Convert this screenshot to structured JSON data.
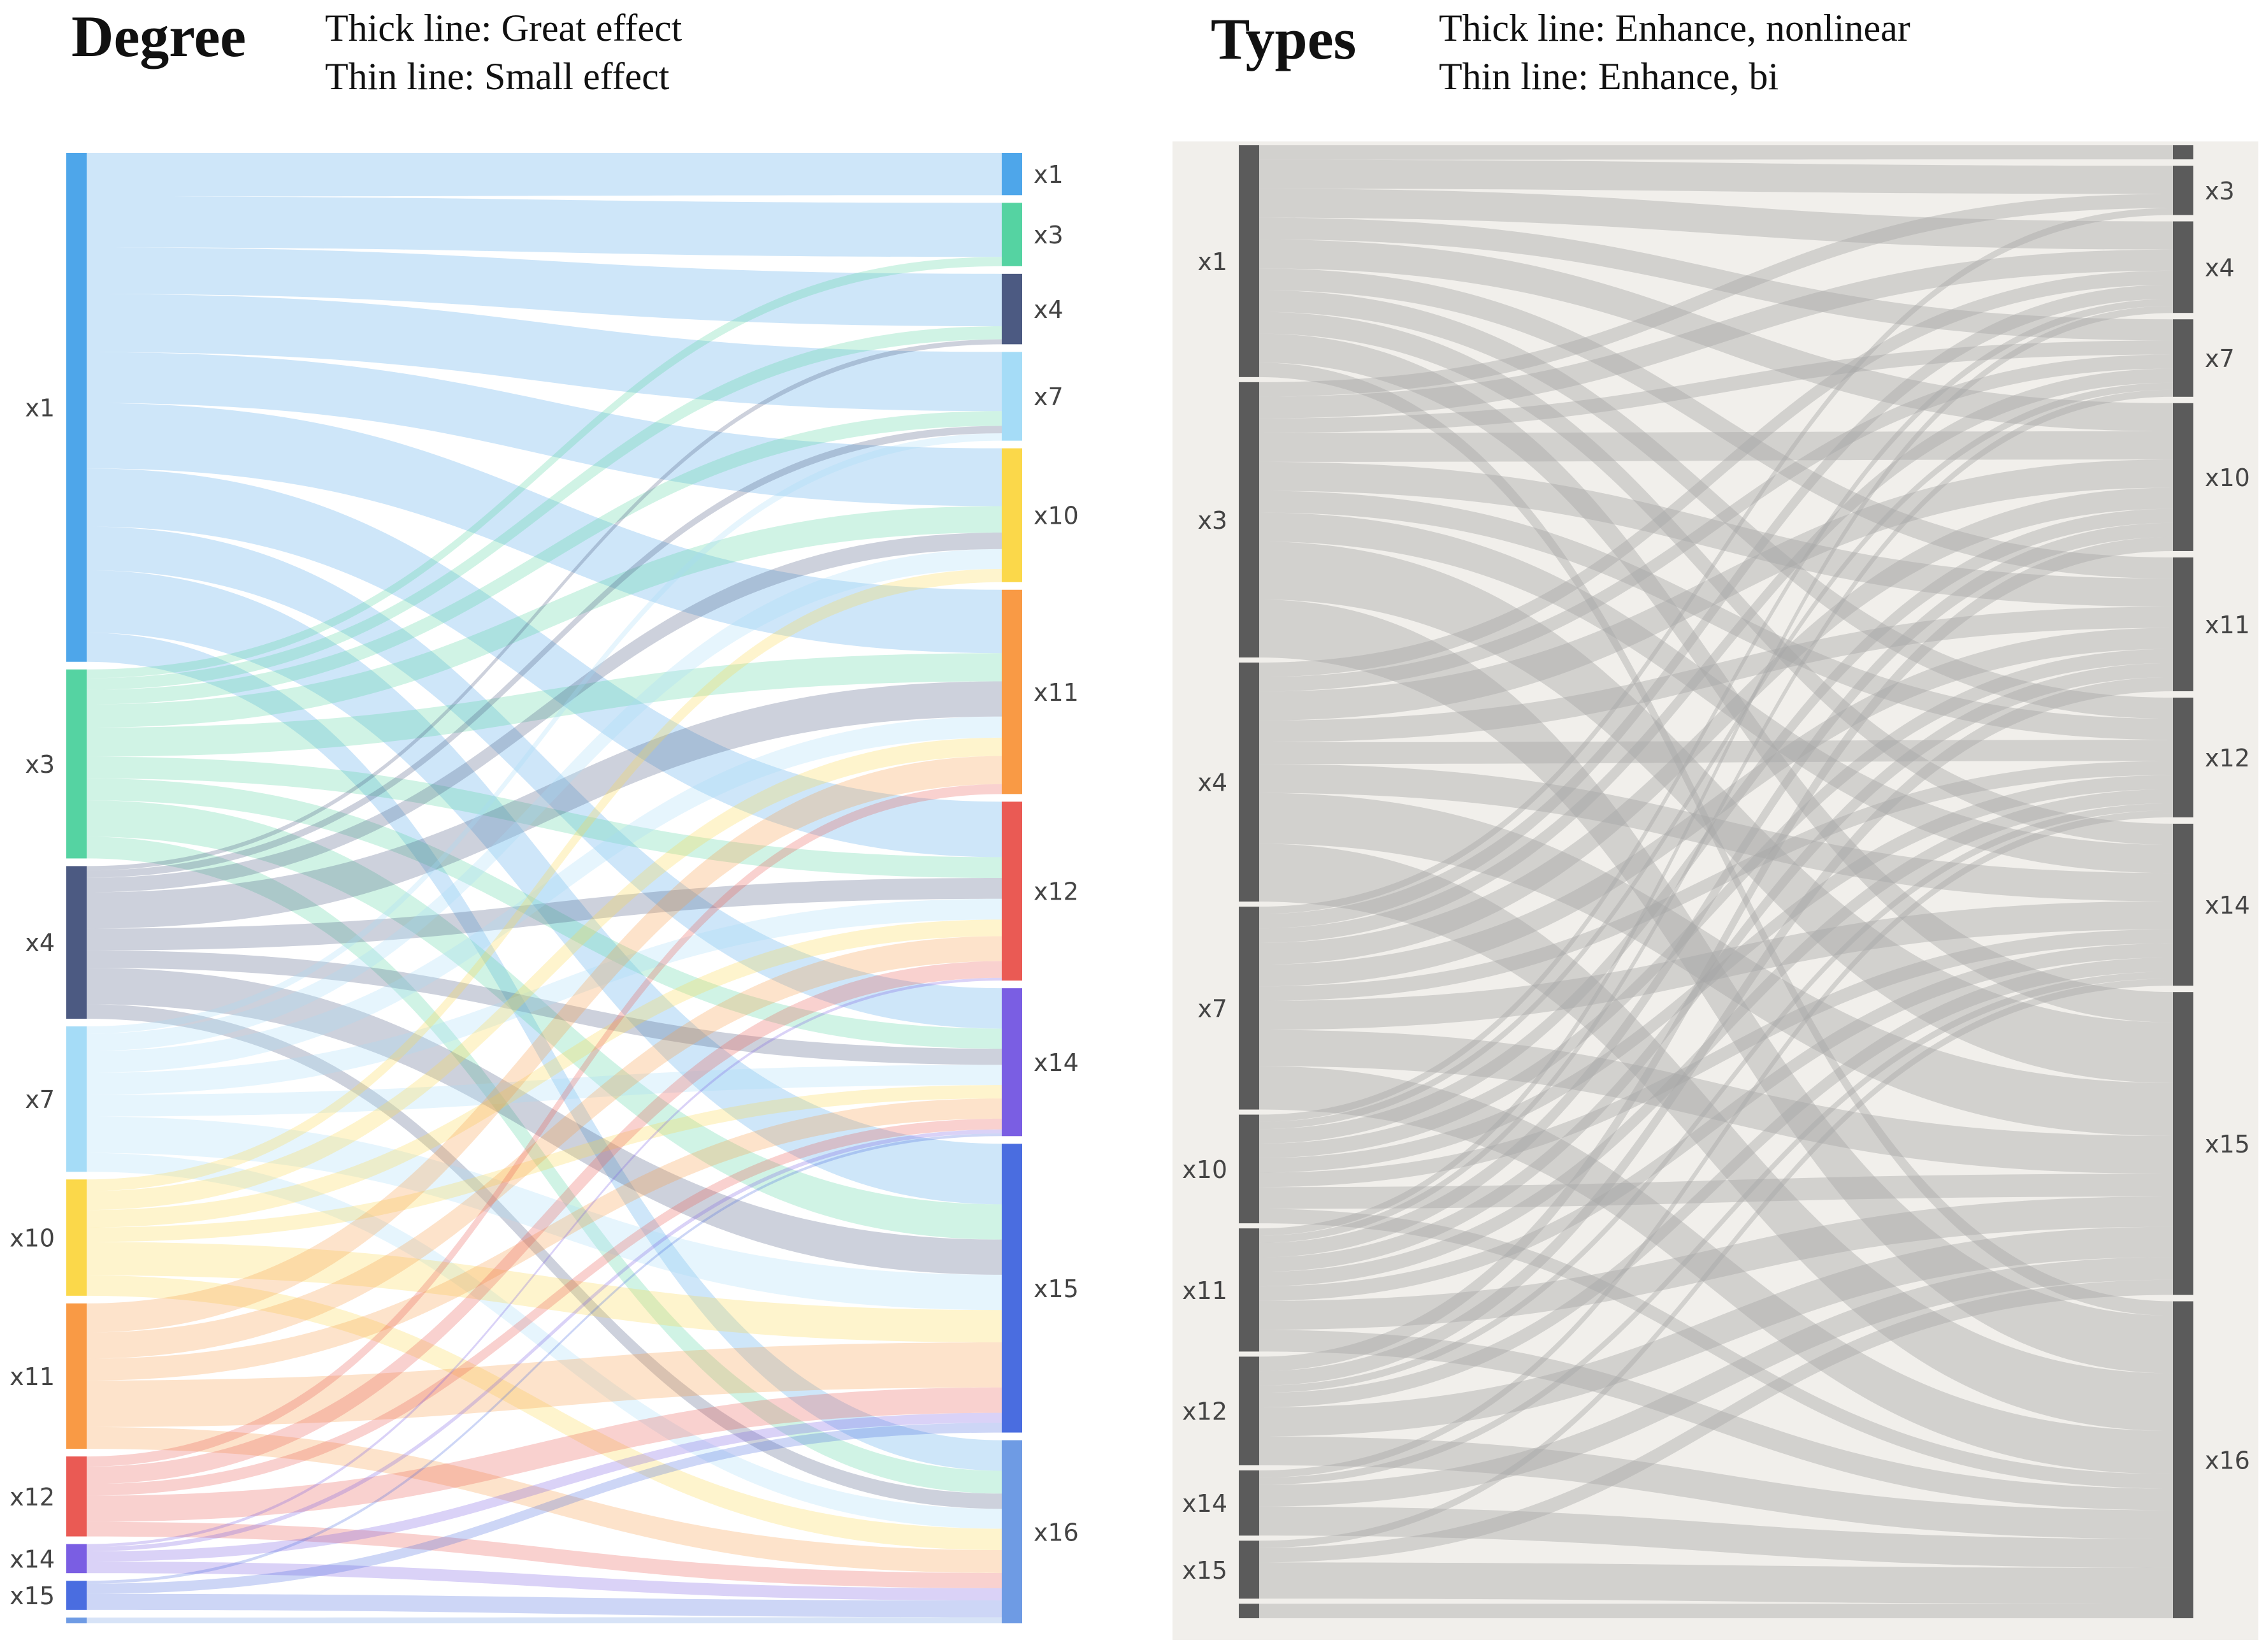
{
  "left_panel": {
    "title": "Degree",
    "legend": [
      "Thick line: Great effect",
      "Thin line: Small effect"
    ]
  },
  "right_panel": {
    "title": "Types",
    "legend": [
      "Thick line: Enhance, nonlinear",
      "Thin line: Enhance, bi"
    ],
    "bg_color": "#f1efeb",
    "node_color": "#5b5b5b",
    "link_color": "#a8a8a8"
  },
  "chart_data": [
    {
      "type": "sankey",
      "title": "Degree",
      "source_nodes": [
        {
          "name": "x1",
          "weight": 35,
          "color": "#4ea6ea"
        },
        {
          "name": "x3",
          "weight": 13,
          "color": "#55d3a2"
        },
        {
          "name": "x4",
          "weight": 10.5,
          "color": "#4c5a82"
        },
        {
          "name": "x7",
          "weight": 10,
          "color": "#a5dcf7"
        },
        {
          "name": "x10",
          "weight": 8,
          "color": "#fbd84a"
        },
        {
          "name": "x11",
          "weight": 10,
          "color": "#f99a45"
        },
        {
          "name": "x12",
          "weight": 5.5,
          "color": "#ea5a54"
        },
        {
          "name": "x14",
          "weight": 2,
          "color": "#7a5ee3"
        },
        {
          "name": "x15",
          "weight": 2,
          "color": "#4a6de0"
        },
        {
          "name": "",
          "weight": 0.4,
          "color": "#6e9be4"
        }
      ],
      "target_nodes": [
        {
          "name": "x1",
          "weight": 3,
          "color": "#4ea6ea"
        },
        {
          "name": "x3",
          "weight": 4.5,
          "color": "#55d3a2"
        },
        {
          "name": "x4",
          "weight": 5,
          "color": "#4c5a82"
        },
        {
          "name": "x7",
          "weight": 6.3,
          "color": "#a5dcf7"
        },
        {
          "name": "x10",
          "weight": 9.5,
          "color": "#fbd84a"
        },
        {
          "name": "x11",
          "weight": 14.5,
          "color": "#f99a45"
        },
        {
          "name": "x12",
          "weight": 12.7,
          "color": "#ea5a54"
        },
        {
          "name": "x14",
          "weight": 10.5,
          "color": "#7a5ee3"
        },
        {
          "name": "x15",
          "weight": 20.5,
          "color": "#4a6de0"
        },
        {
          "name": "x16",
          "weight": 13,
          "color": "#6e9be4"
        }
      ],
      "links": [
        [
          "x1",
          "x1",
          3
        ],
        [
          "x1",
          "x3",
          3.5
        ],
        [
          "x1",
          "x4",
          3.2
        ],
        [
          "x1",
          "x7",
          4
        ],
        [
          "x1",
          "x10",
          3.5
        ],
        [
          "x1",
          "x11",
          4.5
        ],
        [
          "x1",
          "x12",
          4
        ],
        [
          "x1",
          "x14",
          3
        ],
        [
          "x1",
          "x15",
          4.3
        ],
        [
          "x1",
          "x16",
          2
        ],
        [
          "x3",
          "x3",
          0.6
        ],
        [
          "x3",
          "x4",
          0.8
        ],
        [
          "x3",
          "x7",
          1
        ],
        [
          "x3",
          "x10",
          1.6
        ],
        [
          "x3",
          "x11",
          2
        ],
        [
          "x3",
          "x12",
          1.5
        ],
        [
          "x3",
          "x14",
          1.5
        ],
        [
          "x3",
          "x15",
          2.5
        ],
        [
          "x3",
          "x16",
          1.5
        ],
        [
          "x4",
          "x4",
          0.3
        ],
        [
          "x4",
          "x7",
          0.5
        ],
        [
          "x4",
          "x10",
          1
        ],
        [
          "x4",
          "x11",
          2.5
        ],
        [
          "x4",
          "x12",
          1.5
        ],
        [
          "x4",
          "x14",
          1.2
        ],
        [
          "x4",
          "x15",
          2.5
        ],
        [
          "x4",
          "x16",
          1
        ],
        [
          "x7",
          "x7",
          0.5
        ],
        [
          "x7",
          "x10",
          1.2
        ],
        [
          "x7",
          "x11",
          1.5
        ],
        [
          "x7",
          "x12",
          1.5
        ],
        [
          "x7",
          "x14",
          1.5
        ],
        [
          "x7",
          "x15",
          2.5
        ],
        [
          "x7",
          "x16",
          1.3
        ],
        [
          "x10",
          "x10",
          0.8
        ],
        [
          "x10",
          "x11",
          1.3
        ],
        [
          "x10",
          "x12",
          1.2
        ],
        [
          "x10",
          "x14",
          1
        ],
        [
          "x10",
          "x15",
          2.3
        ],
        [
          "x10",
          "x16",
          1.4
        ],
        [
          "x11",
          "x11",
          2
        ],
        [
          "x11",
          "x12",
          1.8
        ],
        [
          "x11",
          "x14",
          1.5
        ],
        [
          "x11",
          "x15",
          3.2
        ],
        [
          "x11",
          "x16",
          1.5
        ],
        [
          "x12",
          "x11",
          0.7
        ],
        [
          "x12",
          "x12",
          1.2
        ],
        [
          "x12",
          "x14",
          0.8
        ],
        [
          "x12",
          "x15",
          1.8
        ],
        [
          "x12",
          "x16",
          1
        ],
        [
          "x14",
          "x12",
          0.2
        ],
        [
          "x14",
          "x14",
          0.3
        ],
        [
          "x14",
          "x15",
          0.7
        ],
        [
          "x14",
          "x16",
          0.8
        ],
        [
          "x15",
          "x14",
          0.2
        ],
        [
          "x15",
          "x15",
          0.7
        ],
        [
          "x15",
          "x16",
          1.1
        ],
        [
          "",
          "x16",
          0.4
        ]
      ]
    },
    {
      "type": "sankey",
      "title": "Types",
      "source_nodes": [
        {
          "name": "x1",
          "weight": 16
        },
        {
          "name": "x3",
          "weight": 19
        },
        {
          "name": "x4",
          "weight": 16.5
        },
        {
          "name": "x7",
          "weight": 14
        },
        {
          "name": "x10",
          "weight": 7.5
        },
        {
          "name": "x11",
          "weight": 8.5
        },
        {
          "name": "x12",
          "weight": 7.5
        },
        {
          "name": "x14",
          "weight": 4.5
        },
        {
          "name": "x15",
          "weight": 4
        },
        {
          "name": "",
          "weight": 1
        }
      ],
      "target_nodes": [
        {
          "name": "",
          "weight": 1
        },
        {
          "name": "x3",
          "weight": 3.5
        },
        {
          "name": "x4",
          "weight": 6.5
        },
        {
          "name": "x7",
          "weight": 5.5
        },
        {
          "name": "x10",
          "weight": 10.5
        },
        {
          "name": "x11",
          "weight": 9.5
        },
        {
          "name": "x12",
          "weight": 8.5
        },
        {
          "name": "x14",
          "weight": 11.5
        },
        {
          "name": "x15",
          "weight": 21.5
        },
        {
          "name": "x16",
          "weight": 22.5
        }
      ],
      "links": [
        [
          "x1",
          "",
          1
        ],
        [
          "x1",
          "x3",
          2
        ],
        [
          "x1",
          "x4",
          2
        ],
        [
          "x1",
          "x7",
          1.5
        ],
        [
          "x1",
          "x10",
          2
        ],
        [
          "x1",
          "x11",
          1.5
        ],
        [
          "x1",
          "x12",
          1.5
        ],
        [
          "x1",
          "x14",
          1.5
        ],
        [
          "x1",
          "x15",
          2
        ],
        [
          "x1",
          "x16",
          1
        ],
        [
          "x3",
          "x3",
          1
        ],
        [
          "x3",
          "x4",
          1.5
        ],
        [
          "x3",
          "x7",
          1
        ],
        [
          "x3",
          "x10",
          2
        ],
        [
          "x3",
          "x11",
          2
        ],
        [
          "x3",
          "x12",
          1.5
        ],
        [
          "x3",
          "x14",
          2
        ],
        [
          "x3",
          "x15",
          4
        ],
        [
          "x3",
          "x16",
          4
        ],
        [
          "x4",
          "x4",
          1
        ],
        [
          "x4",
          "x7",
          1
        ],
        [
          "x4",
          "x10",
          2
        ],
        [
          "x4",
          "x11",
          1.5
        ],
        [
          "x4",
          "x12",
          1.5
        ],
        [
          "x4",
          "x14",
          2
        ],
        [
          "x4",
          "x15",
          3.5
        ],
        [
          "x4",
          "x16",
          4
        ],
        [
          "x7",
          "x3",
          0.5
        ],
        [
          "x7",
          "x4",
          1
        ],
        [
          "x7",
          "x7",
          1
        ],
        [
          "x7",
          "x10",
          1.5
        ],
        [
          "x7",
          "x11",
          1.5
        ],
        [
          "x7",
          "x12",
          1
        ],
        [
          "x7",
          "x14",
          2
        ],
        [
          "x7",
          "x15",
          2.5
        ],
        [
          "x7",
          "x16",
          3
        ],
        [
          "x10",
          "x4",
          0.5
        ],
        [
          "x10",
          "x7",
          0.5
        ],
        [
          "x10",
          "x10",
          1
        ],
        [
          "x10",
          "x11",
          1
        ],
        [
          "x10",
          "x12",
          1
        ],
        [
          "x10",
          "x14",
          1
        ],
        [
          "x10",
          "x15",
          1.5
        ],
        [
          "x10",
          "x16",
          1
        ],
        [
          "x11",
          "x4",
          0.5
        ],
        [
          "x11",
          "x7",
          0.5
        ],
        [
          "x11",
          "x10",
          1
        ],
        [
          "x11",
          "x11",
          1
        ],
        [
          "x11",
          "x12",
          1
        ],
        [
          "x11",
          "x14",
          1
        ],
        [
          "x11",
          "x15",
          2
        ],
        [
          "x11",
          "x16",
          1.5
        ],
        [
          "x12",
          "x10",
          1
        ],
        [
          "x12",
          "x11",
          1
        ],
        [
          "x12",
          "x12",
          0.5
        ],
        [
          "x12",
          "x14",
          1
        ],
        [
          "x12",
          "x15",
          2
        ],
        [
          "x12",
          "x16",
          2
        ],
        [
          "x14",
          "x12",
          0.5
        ],
        [
          "x14",
          "x14",
          0.5
        ],
        [
          "x14",
          "x15",
          1.5
        ],
        [
          "x14",
          "x16",
          2
        ],
        [
          "x15",
          "x14",
          0.5
        ],
        [
          "x15",
          "x15",
          1
        ],
        [
          "x15",
          "x16",
          2.5
        ],
        [
          "",
          "x16",
          1
        ]
      ]
    }
  ]
}
